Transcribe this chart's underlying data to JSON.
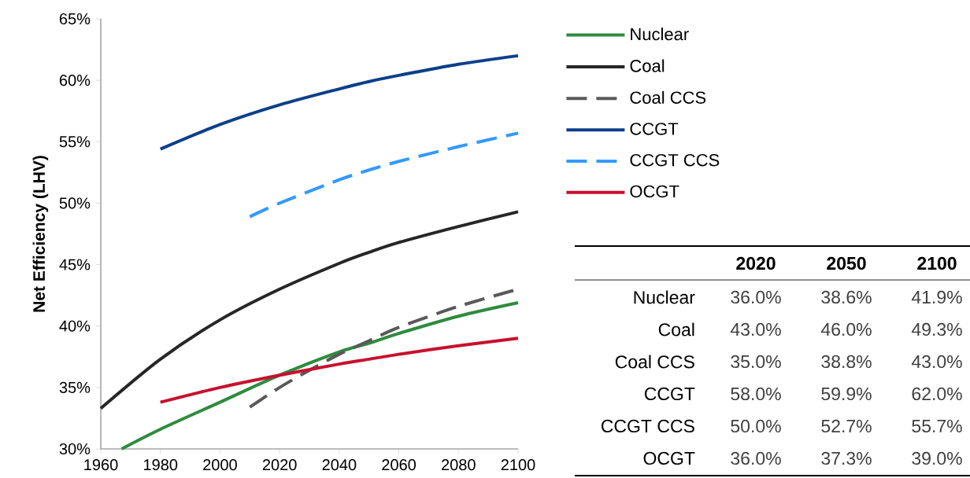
{
  "chart_data": [
    {
      "type": "line",
      "ylabel": "Net Efficiency (LHV)",
      "xlim": [
        1960,
        2100
      ],
      "xticks": [
        1960,
        1980,
        2000,
        2020,
        2040,
        2060,
        2080,
        2100
      ],
      "ylim": [
        30,
        65
      ],
      "yticks": [
        {
          "value": 30,
          "label": "30%"
        },
        {
          "value": 35,
          "label": "35%"
        },
        {
          "value": 40,
          "label": "40%"
        },
        {
          "value": 45,
          "label": "45%"
        },
        {
          "value": 50,
          "label": "50%"
        },
        {
          "value": 55,
          "label": "55%"
        },
        {
          "value": 60,
          "label": "60%"
        },
        {
          "value": 65,
          "label": "65%"
        }
      ],
      "legend": "top right",
      "grid": false,
      "marker": "none",
      "series": [
        {
          "name": "Nuclear",
          "color": "#2e8b3e",
          "line_style": "solid",
          "x": [
            1967,
            1980,
            2000,
            2020,
            2040,
            2050,
            2060,
            2080,
            2100
          ],
          "values": [
            30.0,
            31.6,
            33.8,
            36.0,
            37.9,
            38.6,
            39.4,
            40.8,
            41.9
          ]
        },
        {
          "name": "Coal",
          "color": "#262626",
          "line_style": "solid",
          "x": [
            1960,
            1980,
            2000,
            2020,
            2040,
            2050,
            2060,
            2080,
            2100
          ],
          "values": [
            33.3,
            37.3,
            40.5,
            43.0,
            45.1,
            46.0,
            46.8,
            48.1,
            49.3
          ]
        },
        {
          "name": "Coal CCS",
          "color": "#595959",
          "line_style": "dashed",
          "x": [
            2010,
            2020,
            2030,
            2040,
            2050,
            2060,
            2080,
            2100
          ],
          "values": [
            33.4,
            35.0,
            36.4,
            37.7,
            38.8,
            39.9,
            41.6,
            43.0
          ]
        },
        {
          "name": "CCGT",
          "color": "#0b3f8a",
          "line_style": "solid",
          "x": [
            1980,
            2000,
            2020,
            2040,
            2050,
            2060,
            2080,
            2100
          ],
          "values": [
            54.4,
            56.4,
            58.0,
            59.3,
            59.9,
            60.4,
            61.3,
            62.0
          ]
        },
        {
          "name": "CCGT CCS",
          "color": "#3399ff",
          "line_style": "dashed",
          "x": [
            2010,
            2020,
            2040,
            2050,
            2060,
            2080,
            2100
          ],
          "values": [
            48.9,
            50.0,
            51.9,
            52.7,
            53.4,
            54.6,
            55.7
          ]
        },
        {
          "name": "OCGT",
          "color": "#c8102e",
          "line_style": "solid",
          "x": [
            1980,
            2000,
            2020,
            2040,
            2050,
            2060,
            2080,
            2100
          ],
          "values": [
            33.8,
            35.0,
            36.0,
            36.9,
            37.3,
            37.7,
            38.4,
            39.0
          ]
        }
      ]
    },
    {
      "type": "other",
      "categories": [
        "2020",
        "2050",
        "2100"
      ],
      "y_categories": [
        "Nuclear",
        "Coal",
        "Coal CCS",
        "CCGT",
        "CCGT CCS",
        "OCGT"
      ],
      "cell_labels": [
        [
          "36.0%",
          "38.6%",
          "41.9%"
        ],
        [
          "43.0%",
          "46.0%",
          "49.3%"
        ],
        [
          "35.0%",
          "38.8%",
          "43.0%"
        ],
        [
          "58.0%",
          "59.9%",
          "62.0%"
        ],
        [
          "50.0%",
          "52.7%",
          "55.7%"
        ],
        [
          "36.0%",
          "37.3%",
          "39.0%"
        ]
      ]
    }
  ]
}
